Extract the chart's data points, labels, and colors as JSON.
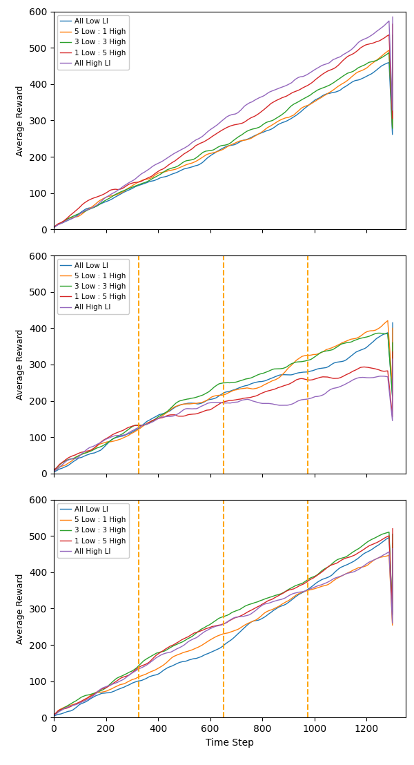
{
  "legend_labels": [
    "All Low LI",
    "5 Low : 1 High",
    "3 Low : 3 High",
    "1 Low : 5 High",
    "All High LI"
  ],
  "colors": [
    "#1f77b4",
    "#ff7f0e",
    "#2ca02c",
    "#d62728",
    "#9467bd"
  ],
  "ylim": [
    0,
    600
  ],
  "xlim": [
    0,
    1350
  ],
  "ylabel": "Average Reward",
  "xlabel": "Time Step",
  "dashed_lines": [
    325,
    650,
    975
  ],
  "dashed_color": "#FFA500",
  "n_steps": 1300,
  "start_value": 10,
  "panel1": {
    "end_values": [
      490,
      500,
      535,
      565,
      585
    ],
    "noise_scale": 0.8,
    "smooth_window": 30
  },
  "panel2": {
    "end_values": [
      415,
      400,
      360,
      335,
      315
    ],
    "kink_x": 650,
    "kink_y": 222,
    "early_y": 115,
    "early_x": 300,
    "noise_scale": 1.2,
    "smooth_window": 40
  },
  "panel3": {
    "end_values": [
      465,
      480,
      505,
      520,
      465
    ],
    "noise_scale": 0.8,
    "smooth_window": 30
  }
}
